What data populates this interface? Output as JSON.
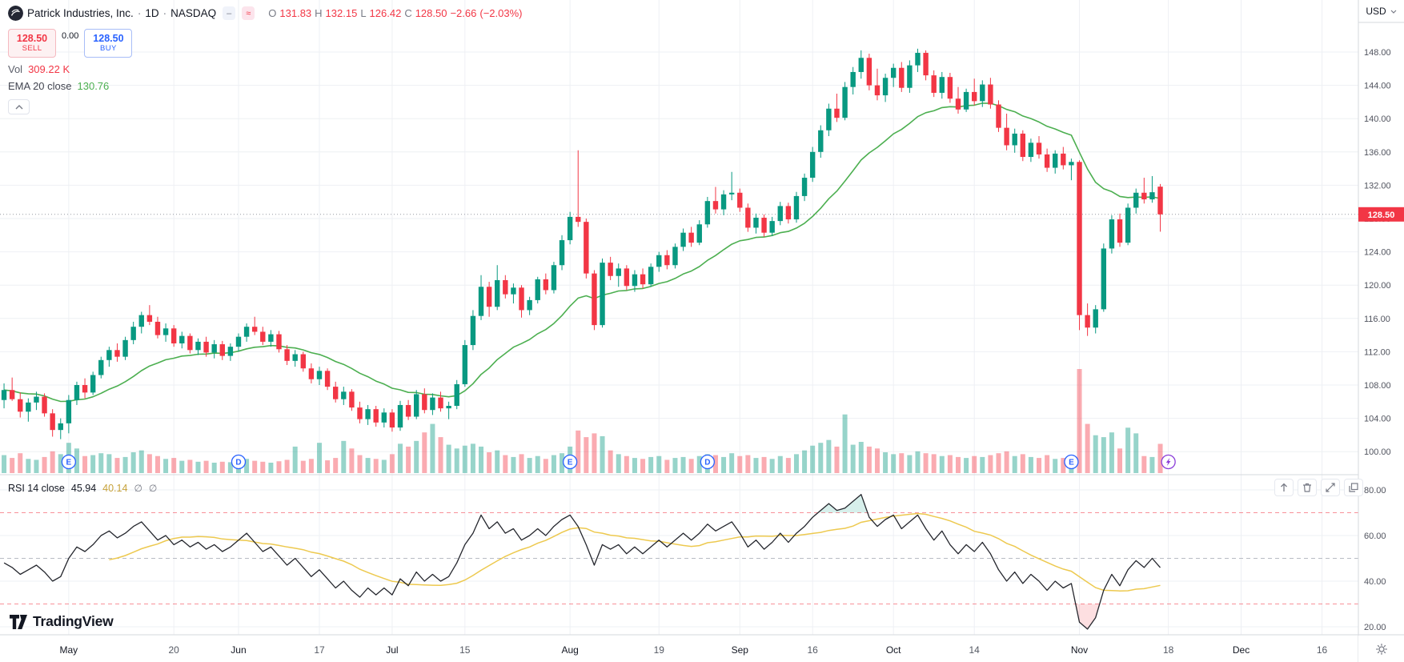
{
  "header": {
    "symbol": "Patrick Industries, Inc.",
    "dot": "·",
    "timeframe": "1D",
    "exchange": "NASDAQ",
    "chip_minus": "–",
    "chip_flag": "≈",
    "ohlc": {
      "o_label": "O",
      "o": "131.83",
      "h_label": "H",
      "h": "132.15",
      "l_label": "L",
      "l": "126.42",
      "c_label": "C",
      "c": "128.50",
      "change": "−2.66",
      "change_pct": "(−2.03%)"
    },
    "sell": {
      "price": "128.50",
      "label": "SELL"
    },
    "spread": "0.00",
    "buy": {
      "price": "128.50",
      "label": "BUY"
    },
    "volume": {
      "label": "Vol",
      "value": "309.22 K"
    },
    "ema_legend": {
      "label": "EMA 20 close",
      "value": "130.76"
    }
  },
  "rsi_legend": {
    "label": "RSI 14 close",
    "value": "45.94",
    "ma_value": "40.14",
    "empty1": "∅",
    "empty2": "∅"
  },
  "price_axis": {
    "currency": "USD",
    "ticks": [
      "148.00",
      "144.00",
      "140.00",
      "136.00",
      "132.00",
      "128.00",
      "124.00",
      "120.00",
      "116.00",
      "112.00",
      "108.00",
      "104.00",
      "100.00"
    ],
    "last_price_label": "128.50"
  },
  "rsi_axis": {
    "ticks": [
      "80.00",
      "60.00",
      "40.00",
      "20.00"
    ]
  },
  "time_axis": {
    "ticks": [
      {
        "label": "May",
        "i": 8,
        "major": true
      },
      {
        "label": "20",
        "i": 21,
        "major": false
      },
      {
        "label": "Jun",
        "i": 29,
        "major": true
      },
      {
        "label": "17",
        "i": 39,
        "major": false
      },
      {
        "label": "Jul",
        "i": 48,
        "major": true
      },
      {
        "label": "15",
        "i": 57,
        "major": false
      },
      {
        "label": "Aug",
        "i": 70,
        "major": true
      },
      {
        "label": "19",
        "i": 81,
        "major": false
      },
      {
        "label": "Sep",
        "i": 91,
        "major": true
      },
      {
        "label": "16",
        "i": 100,
        "major": false
      },
      {
        "label": "Oct",
        "i": 110,
        "major": true
      },
      {
        "label": "14",
        "i": 120,
        "major": false
      },
      {
        "label": "Nov",
        "i": 133,
        "major": true
      },
      {
        "label": "18",
        "i": 144,
        "major": false
      },
      {
        "label": "Dec",
        "i": 153,
        "major": true
      },
      {
        "label": "16",
        "i": 163,
        "major": false
      }
    ]
  },
  "brand": {
    "name": "TradingView"
  },
  "chart_data": {
    "type": "candlestick",
    "title": "Patrick Industries, Inc. · 1D · NASDAQ",
    "ylabel": "USD",
    "ylim": [
      98,
      150
    ],
    "rsi_range": [
      20,
      80
    ],
    "rsi_bands": [
      70,
      50,
      30
    ],
    "volume_unit": "K shares",
    "indicators": {
      "ema_period": 20,
      "ema_last": 130.76,
      "rsi_period": 14,
      "rsi_last": 45.94,
      "rsi_ma_last": 40.14
    },
    "candles": [
      [
        106.2,
        108.2,
        105.2,
        107.4,
        190
      ],
      [
        107.4,
        108.9,
        106.1,
        106.3,
        160
      ],
      [
        106.3,
        107.1,
        104.1,
        104.8,
        210
      ],
      [
        104.8,
        106.4,
        103.6,
        105.9,
        150
      ],
      [
        105.9,
        107.2,
        105,
        106.6,
        140
      ],
      [
        106.6,
        107,
        104.2,
        104.6,
        170
      ],
      [
        104.6,
        105.1,
        101.8,
        102.6,
        230
      ],
      [
        102.6,
        104,
        101.5,
        103.4,
        200
      ],
      [
        103.4,
        106.8,
        102.2,
        106.2,
        320
      ],
      [
        106.2,
        108.4,
        105.6,
        108,
        260
      ],
      [
        108,
        108.8,
        106.4,
        107.1,
        180
      ],
      [
        107.1,
        109.6,
        106.8,
        109.2,
        190
      ],
      [
        109.2,
        111.4,
        108.8,
        111,
        210
      ],
      [
        111,
        112.6,
        110.2,
        112.2,
        200
      ],
      [
        112.2,
        113,
        110.8,
        111.4,
        160
      ],
      [
        111.4,
        113.8,
        111,
        113.4,
        170
      ],
      [
        113.4,
        115.6,
        112.9,
        115,
        220
      ],
      [
        115,
        116.8,
        114.2,
        116.4,
        240
      ],
      [
        116.4,
        117.6,
        115.2,
        115.6,
        200
      ],
      [
        115.6,
        116.2,
        113.6,
        114,
        180
      ],
      [
        114,
        115.4,
        113.2,
        114.8,
        150
      ],
      [
        114.8,
        115.2,
        112.6,
        113,
        160
      ],
      [
        113,
        114.4,
        112.4,
        113.9,
        130
      ],
      [
        113.9,
        114.2,
        111.8,
        112.2,
        140
      ],
      [
        112.2,
        113.6,
        111.6,
        113.2,
        120
      ],
      [
        113.2,
        113.8,
        111.4,
        111.9,
        130
      ],
      [
        111.9,
        113.4,
        111.2,
        112.9,
        110
      ],
      [
        112.9,
        113.3,
        111,
        111.5,
        120
      ],
      [
        111.5,
        113,
        110.9,
        112.6,
        115
      ],
      [
        112.6,
        114.2,
        112,
        113.8,
        140
      ],
      [
        113.8,
        115.4,
        113.2,
        115,
        150
      ],
      [
        115,
        116.2,
        114,
        114.4,
        130
      ],
      [
        114.4,
        115,
        112.8,
        113.2,
        120
      ],
      [
        113.2,
        114.6,
        112.6,
        114.1,
        110
      ],
      [
        114.1,
        114.5,
        111.9,
        112.3,
        125
      ],
      [
        112.3,
        112.8,
        110.4,
        110.9,
        140
      ],
      [
        110.9,
        112.2,
        110.2,
        111.7,
        280
      ],
      [
        111.7,
        112,
        109.6,
        110,
        130
      ],
      [
        110,
        110.6,
        108.2,
        108.7,
        150
      ],
      [
        108.7,
        110.2,
        108,
        109.7,
        320
      ],
      [
        109.7,
        110,
        107.4,
        107.8,
        135
      ],
      [
        107.8,
        108.4,
        105.9,
        106.3,
        160
      ],
      [
        106.3,
        107.8,
        105.6,
        107.2,
        340
      ],
      [
        107.2,
        107.5,
        104.9,
        105.3,
        260
      ],
      [
        105.3,
        106,
        103.4,
        103.9,
        190
      ],
      [
        103.9,
        105.6,
        103.2,
        105.1,
        160
      ],
      [
        105.1,
        105.5,
        103,
        103.5,
        150
      ],
      [
        103.5,
        105.2,
        102.9,
        104.7,
        140
      ],
      [
        104.7,
        105.1,
        102.4,
        102.9,
        200
      ],
      [
        102.9,
        106.1,
        102.5,
        105.6,
        310
      ],
      [
        105.6,
        106.2,
        103.8,
        104.2,
        280
      ],
      [
        104.2,
        107.4,
        103.9,
        106.9,
        340
      ],
      [
        106.9,
        107.6,
        104.6,
        105,
        430
      ],
      [
        105,
        107,
        104.4,
        106.5,
        520
      ],
      [
        106.5,
        107.2,
        104.8,
        105.2,
        380
      ],
      [
        105.2,
        106,
        103.9,
        105.5,
        300
      ],
      [
        105.5,
        108.6,
        105.1,
        108.1,
        260
      ],
      [
        108.1,
        113.4,
        107.8,
        112.8,
        290
      ],
      [
        112.8,
        117,
        112.2,
        116.3,
        310
      ],
      [
        116.3,
        121.2,
        115.8,
        119.8,
        280
      ],
      [
        119.8,
        120.4,
        116.2,
        117.4,
        220
      ],
      [
        117.4,
        122.4,
        117,
        120.6,
        240
      ],
      [
        120.6,
        121.2,
        118.4,
        118.9,
        190
      ],
      [
        118.9,
        120.2,
        117.8,
        119.7,
        170
      ],
      [
        119.7,
        120,
        116.1,
        117,
        200
      ],
      [
        117,
        118.6,
        116.4,
        118.2,
        160
      ],
      [
        118.2,
        121,
        117.8,
        120.7,
        180
      ],
      [
        120.7,
        121.4,
        118.9,
        119.4,
        150
      ],
      [
        119.4,
        122.8,
        119,
        122.4,
        190
      ],
      [
        122.4,
        126,
        121.8,
        125.4,
        210
      ],
      [
        125.4,
        128.8,
        124.9,
        128.2,
        280
      ],
      [
        128.2,
        136.2,
        127,
        127.6,
        450
      ],
      [
        127.6,
        128,
        120.8,
        121.4,
        380
      ],
      [
        121.4,
        121.8,
        114.6,
        115.2,
        420
      ],
      [
        115.2,
        123.2,
        114.9,
        122.7,
        390
      ],
      [
        122.7,
        123.4,
        120.6,
        121.1,
        240
      ],
      [
        121.1,
        122.6,
        119.8,
        122,
        200
      ],
      [
        122,
        122.4,
        119.4,
        119.9,
        180
      ],
      [
        119.9,
        121.8,
        119.2,
        121.3,
        160
      ],
      [
        121.3,
        122,
        119.6,
        120.1,
        150
      ],
      [
        120.1,
        122.6,
        119.8,
        122.2,
        170
      ],
      [
        122.2,
        124,
        121.6,
        123.6,
        180
      ],
      [
        123.6,
        124.2,
        121.9,
        122.4,
        140
      ],
      [
        122.4,
        125,
        122,
        124.6,
        160
      ],
      [
        124.6,
        126.8,
        124.1,
        126.3,
        170
      ],
      [
        126.3,
        127,
        124.6,
        125.1,
        150
      ],
      [
        125.1,
        127.8,
        124.8,
        127.3,
        180
      ],
      [
        127.3,
        130.6,
        126.9,
        130.1,
        200
      ],
      [
        130.1,
        131.8,
        128.6,
        129.1,
        190
      ],
      [
        129.1,
        131.4,
        128.4,
        130.9,
        170
      ],
      [
        130.9,
        133.6,
        130.2,
        131.1,
        210
      ],
      [
        131.1,
        131.6,
        128.8,
        129.3,
        180
      ],
      [
        129.3,
        129.8,
        126.4,
        126.9,
        190
      ],
      [
        126.9,
        128.6,
        126.2,
        128.1,
        160
      ],
      [
        128.1,
        128.5,
        125.8,
        126.3,
        170
      ],
      [
        126.3,
        128.2,
        125.9,
        127.7,
        150
      ],
      [
        127.7,
        130,
        127.2,
        129.5,
        180
      ],
      [
        129.5,
        129.9,
        127.4,
        127.9,
        160
      ],
      [
        127.9,
        131.2,
        127.5,
        130.7,
        200
      ],
      [
        130.7,
        133.4,
        130.1,
        132.9,
        240
      ],
      [
        132.9,
        136.6,
        132.4,
        136,
        290
      ],
      [
        136,
        139.2,
        135.3,
        138.6,
        320
      ],
      [
        138.6,
        141.8,
        137.9,
        141.2,
        350
      ],
      [
        141.2,
        143,
        139.6,
        140.1,
        280
      ],
      [
        140.1,
        144.4,
        139.8,
        143.8,
        620
      ],
      [
        143.8,
        146.2,
        142.9,
        145.6,
        300
      ],
      [
        145.6,
        148.2,
        144.8,
        147.3,
        330
      ],
      [
        147.3,
        147.8,
        143.4,
        144,
        280
      ],
      [
        144,
        146,
        142.2,
        142.8,
        260
      ],
      [
        142.8,
        145.4,
        142,
        144.9,
        220
      ],
      [
        144.9,
        146.6,
        143.8,
        146.1,
        200
      ],
      [
        146.1,
        146.8,
        143.2,
        143.7,
        210
      ],
      [
        143.7,
        147,
        143.1,
        146.4,
        190
      ],
      [
        146.4,
        148.4,
        145.6,
        147.9,
        230
      ],
      [
        147.9,
        148.2,
        144.6,
        145.2,
        210
      ],
      [
        145.2,
        145.8,
        142.6,
        143.1,
        200
      ],
      [
        143.1,
        145.6,
        142.4,
        145,
        180
      ],
      [
        145,
        145.5,
        141.9,
        142.4,
        190
      ],
      [
        142.4,
        143.8,
        140.6,
        141.1,
        170
      ],
      [
        141.1,
        143.6,
        140.8,
        143.2,
        160
      ],
      [
        143.2,
        144.8,
        141.6,
        142.1,
        180
      ],
      [
        142.1,
        144.6,
        141.4,
        144.1,
        170
      ],
      [
        144.1,
        144.9,
        141.2,
        141.7,
        190
      ],
      [
        141.7,
        142.2,
        138.4,
        138.9,
        210
      ],
      [
        138.9,
        140.6,
        136.2,
        136.8,
        230
      ],
      [
        136.8,
        138.8,
        135.9,
        138.2,
        180
      ],
      [
        138.2,
        138.6,
        134.9,
        135.4,
        200
      ],
      [
        135.4,
        137.6,
        134.8,
        137.1,
        170
      ],
      [
        137.1,
        137.9,
        135.2,
        135.7,
        160
      ],
      [
        135.7,
        136.4,
        133.6,
        134.1,
        190
      ],
      [
        134.1,
        136.2,
        133.4,
        135.8,
        150
      ],
      [
        135.8,
        136.6,
        133.9,
        134.4,
        160
      ],
      [
        134.4,
        135.2,
        132.6,
        134.8,
        170
      ],
      [
        134.8,
        135,
        114.6,
        116.4,
        1100
      ],
      [
        116.4,
        117.8,
        113.9,
        114.9,
        520
      ],
      [
        114.9,
        117.6,
        114.2,
        117.1,
        400
      ],
      [
        117.1,
        125,
        116.8,
        124.4,
        380
      ],
      [
        124.4,
        128.4,
        123.8,
        127.9,
        430
      ],
      [
        127.9,
        128.6,
        124.6,
        125.1,
        260
      ],
      [
        125.1,
        129.8,
        124.8,
        129.3,
        480
      ],
      [
        129.3,
        131.6,
        128.6,
        131.1,
        420
      ],
      [
        131.1,
        132.9,
        129.8,
        130.3,
        180
      ],
      [
        130.3,
        133.1,
        129.9,
        131.16,
        170
      ],
      [
        131.83,
        132.15,
        126.42,
        128.5,
        309
      ]
    ],
    "rsi": [
      48,
      46,
      43,
      45,
      47,
      44,
      40,
      42,
      50,
      55,
      53,
      56,
      60,
      62,
      59,
      61,
      64,
      66,
      62,
      58,
      60,
      56,
      58,
      55,
      57,
      54,
      56,
      53,
      55,
      58,
      61,
      57,
      53,
      55,
      51,
      47,
      50,
      46,
      42,
      45,
      41,
      37,
      40,
      36,
      33,
      37,
      34,
      37,
      34,
      41,
      38,
      44,
      40,
      43,
      40,
      42,
      48,
      56,
      61,
      69,
      63,
      66,
      61,
      63,
      58,
      60,
      63,
      60,
      64,
      67,
      69,
      64,
      56,
      47,
      56,
      54,
      56,
      52,
      55,
      52,
      55,
      58,
      55,
      58,
      61,
      58,
      61,
      65,
      62,
      64,
      66,
      61,
      55,
      58,
      54,
      57,
      61,
      57,
      61,
      64,
      68,
      71,
      74,
      71,
      72,
      75,
      78,
      68,
      64,
      67,
      69,
      63,
      66,
      69,
      63,
      58,
      62,
      56,
      52,
      56,
      53,
      57,
      52,
      45,
      40,
      44,
      39,
      43,
      40,
      36,
      40,
      37,
      39,
      22,
      19,
      24,
      36,
      43,
      38,
      45,
      49,
      46,
      50,
      45.94
    ],
    "markers": [
      {
        "kind": "earnings",
        "label": "E",
        "i": 8
      },
      {
        "kind": "dividend",
        "label": "D",
        "i": 29
      },
      {
        "kind": "earnings",
        "label": "E",
        "i": 70
      },
      {
        "kind": "dividend",
        "label": "D",
        "i": 87
      },
      {
        "kind": "earnings",
        "label": "E",
        "i": 132
      },
      {
        "kind": "flash",
        "label": "",
        "i": 144
      }
    ],
    "colors": {
      "up": "#089981",
      "down": "#f23645",
      "vol_up": "rgba(8,153,129,0.42)",
      "vol_down": "rgba(242,54,69,0.42)",
      "ema": "#4caf50",
      "rsi": "#24262d",
      "rsi_ma": "#edc94f",
      "rsi_band": "rgba(242,54,69,0.55)",
      "rsi_mid": "#b8bcc4",
      "rsi_fill_up": "rgba(8,153,129,0.16)",
      "rsi_fill_down": "rgba(242,54,69,0.16)",
      "grid": "#eef0f4",
      "separator": "#d6d9de",
      "axis_text": "#50535e",
      "tag_bg": "#f23645",
      "tag_text": "#ffffff",
      "marker_blue": "#2962ff",
      "marker_purple": "#8c3fd9",
      "price_line": "#9598a1"
    }
  }
}
